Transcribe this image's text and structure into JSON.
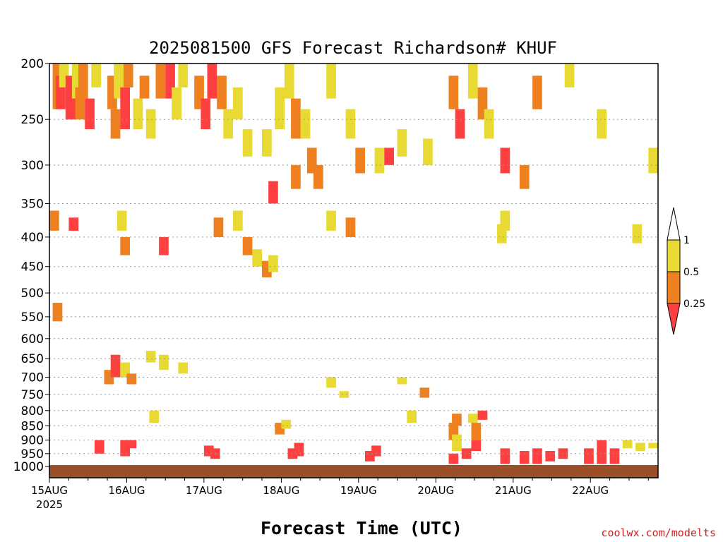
{
  "chart_data": {
    "type": "heatmap",
    "title": "2025081500 GFS Forecast Richardson# KHUF",
    "xlabel": "Forecast Time (UTC)",
    "ylabel": "",
    "credit": "coolwx.com/modelts",
    "x_ticks": [
      "15AUG",
      "16AUG",
      "17AUG",
      "18AUG",
      "19AUG",
      "20AUG",
      "21AUG",
      "22AUG"
    ],
    "x_year_label": "2025",
    "x_range_hours": [
      0,
      189
    ],
    "y_ticks": [
      200,
      250,
      300,
      350,
      400,
      450,
      500,
      550,
      600,
      650,
      700,
      750,
      800,
      850,
      900,
      950,
      1000
    ],
    "y_range_hPa": [
      200,
      1000
    ],
    "y_scale": "log-pressure",
    "grid": "dotted horizontal at y ticks",
    "legend": {
      "placement": "right",
      "labels": [
        "1",
        "0.5",
        "0.25"
      ],
      "colors": {
        "ge1": "#ffffff",
        "c05_1": "#e8da33",
        "c025_05": "#ee8020",
        "lt025": "#ff4040"
      }
    },
    "colors": {
      "ground": "#9b4f28",
      "yellow": "#e8da33",
      "orange": "#ee8020",
      "red": "#ff4040"
    },
    "cells": [
      {
        "h": 1,
        "p": [
          200,
          240
        ],
        "c": "o"
      },
      {
        "h": 2,
        "p": [
          210,
          240
        ],
        "c": "r"
      },
      {
        "h": 3,
        "p": [
          200,
          220
        ],
        "c": "y"
      },
      {
        "h": 5,
        "p": [
          210,
          250
        ],
        "c": "r"
      },
      {
        "h": 7,
        "p": [
          200,
          230
        ],
        "c": "y"
      },
      {
        "h": 8,
        "p": [
          220,
          250
        ],
        "c": "o"
      },
      {
        "h": 9,
        "p": [
          200,
          230
        ],
        "c": "o"
      },
      {
        "h": 11,
        "p": [
          230,
          260
        ],
        "c": "r"
      },
      {
        "h": 13,
        "p": [
          200,
          220
        ],
        "c": "y"
      },
      {
        "h": 18,
        "p": [
          210,
          240
        ],
        "c": "o"
      },
      {
        "h": 19,
        "p": [
          240,
          270
        ],
        "c": "o"
      },
      {
        "h": 20,
        "p": [
          200,
          230
        ],
        "c": "y"
      },
      {
        "h": 22,
        "p": [
          220,
          260
        ],
        "c": "r"
      },
      {
        "h": 23,
        "p": [
          200,
          220
        ],
        "c": "o"
      },
      {
        "h": 26,
        "p": [
          230,
          260
        ],
        "c": "y"
      },
      {
        "h": 28,
        "p": [
          210,
          230
        ],
        "c": "o"
      },
      {
        "h": 30,
        "p": [
          240,
          270
        ],
        "c": "y"
      },
      {
        "h": 33,
        "p": [
          200,
          230
        ],
        "c": "o"
      },
      {
        "h": 36,
        "p": [
          200,
          230
        ],
        "c": "r"
      },
      {
        "h": 38,
        "p": [
          220,
          250
        ],
        "c": "y"
      },
      {
        "h": 40,
        "p": [
          200,
          220
        ],
        "c": "y"
      },
      {
        "h": 45,
        "p": [
          210,
          240
        ],
        "c": "o"
      },
      {
        "h": 47,
        "p": [
          230,
          260
        ],
        "c": "r"
      },
      {
        "h": 49,
        "p": [
          200,
          230
        ],
        "c": "r"
      },
      {
        "h": 52,
        "p": [
          210,
          240
        ],
        "c": "o"
      },
      {
        "h": 54,
        "p": [
          240,
          270
        ],
        "c": "y"
      },
      {
        "h": 57,
        "p": [
          220,
          250
        ],
        "c": "y"
      },
      {
        "h": 60,
        "p": [
          260,
          290
        ],
        "c": "y"
      },
      {
        "h": 66,
        "p": [
          260,
          290
        ],
        "c": "y"
      },
      {
        "h": 70,
        "p": [
          220,
          260
        ],
        "c": "y"
      },
      {
        "h": 73,
        "p": [
          200,
          230
        ],
        "c": "y"
      },
      {
        "h": 75,
        "p": [
          230,
          270
        ],
        "c": "o"
      },
      {
        "h": 78,
        "p": [
          240,
          270
        ],
        "c": "y"
      },
      {
        "h": 80,
        "p": [
          280,
          310
        ],
        "c": "o"
      },
      {
        "h": 82,
        "p": [
          300,
          330
        ],
        "c": "o"
      },
      {
        "h": 86,
        "p": [
          200,
          230
        ],
        "c": "y"
      },
      {
        "h": 92,
        "p": [
          240,
          270
        ],
        "c": "y"
      },
      {
        "h": 95,
        "p": [
          280,
          310
        ],
        "c": "o"
      },
      {
        "h": 101,
        "p": [
          280,
          310
        ],
        "c": "y"
      },
      {
        "h": 104,
        "p": [
          280,
          300
        ],
        "c": "r"
      },
      {
        "h": 108,
        "p": [
          260,
          290
        ],
        "c": "y"
      },
      {
        "h": 116,
        "p": [
          270,
          300
        ],
        "c": "y"
      },
      {
        "h": 124,
        "p": [
          210,
          240
        ],
        "c": "o"
      },
      {
        "h": 126,
        "p": [
          240,
          270
        ],
        "c": "r"
      },
      {
        "h": 130,
        "p": [
          200,
          230
        ],
        "c": "y"
      },
      {
        "h": 133,
        "p": [
          220,
          250
        ],
        "c": "o"
      },
      {
        "h": 135,
        "p": [
          240,
          270
        ],
        "c": "y"
      },
      {
        "h": 140,
        "p": [
          280,
          310
        ],
        "c": "r"
      },
      {
        "h": 146,
        "p": [
          300,
          330
        ],
        "c": "o"
      },
      {
        "h": 150,
        "p": [
          210,
          240
        ],
        "c": "o"
      },
      {
        "h": 160,
        "p": [
          200,
          220
        ],
        "c": "y"
      },
      {
        "h": 170,
        "p": [
          240,
          270
        ],
        "c": "y"
      },
      {
        "h": 186,
        "p": [
          280,
          310
        ],
        "c": "y"
      },
      {
        "h": 0,
        "p": [
          360,
          390
        ],
        "c": "o"
      },
      {
        "h": 6,
        "p": [
          370,
          390
        ],
        "c": "r"
      },
      {
        "h": 21,
        "p": [
          360,
          390
        ],
        "c": "y"
      },
      {
        "h": 22,
        "p": [
          400,
          430
        ],
        "c": "o"
      },
      {
        "h": 34,
        "p": [
          400,
          430
        ],
        "c": "r"
      },
      {
        "h": 51,
        "p": [
          370,
          400
        ],
        "c": "o"
      },
      {
        "h": 57,
        "p": [
          360,
          390
        ],
        "c": "y"
      },
      {
        "h": 60,
        "p": [
          400,
          430
        ],
        "c": "o"
      },
      {
        "h": 63,
        "p": [
          420,
          450
        ],
        "c": "y"
      },
      {
        "h": 66,
        "p": [
          440,
          470
        ],
        "c": "o"
      },
      {
        "h": 68,
        "p": [
          430,
          460
        ],
        "c": "y"
      },
      {
        "h": 68,
        "p": [
          320,
          350
        ],
        "c": "r"
      },
      {
        "h": 75,
        "p": [
          300,
          330
        ],
        "c": "o"
      },
      {
        "h": 86,
        "p": [
          360,
          390
        ],
        "c": "y"
      },
      {
        "h": 92,
        "p": [
          370,
          400
        ],
        "c": "o"
      },
      {
        "h": 139,
        "p": [
          380,
          410
        ],
        "c": "y"
      },
      {
        "h": 140,
        "p": [
          360,
          390
        ],
        "c": "y"
      },
      {
        "h": 181,
        "p": [
          380,
          410
        ],
        "c": "y"
      },
      {
        "h": 1,
        "p": [
          520,
          560
        ],
        "c": "o"
      },
      {
        "h": 17,
        "p": [
          680,
          720
        ],
        "c": "o"
      },
      {
        "h": 19,
        "p": [
          640,
          700
        ],
        "c": "r"
      },
      {
        "h": 22,
        "p": [
          660,
          700
        ],
        "c": "y"
      },
      {
        "h": 24,
        "p": [
          690,
          720
        ],
        "c": "o"
      },
      {
        "h": 30,
        "p": [
          630,
          660
        ],
        "c": "y"
      },
      {
        "h": 34,
        "p": [
          640,
          680
        ],
        "c": "y"
      },
      {
        "h": 40,
        "p": [
          660,
          690
        ],
        "c": "y"
      },
      {
        "h": 31,
        "p": [
          800,
          840
        ],
        "c": "y"
      },
      {
        "h": 86,
        "p": [
          700,
          730
        ],
        "c": "y"
      },
      {
        "h": 90,
        "p": [
          740,
          760
        ],
        "c": "y"
      },
      {
        "h": 108,
        "p": [
          700,
          720
        ],
        "c": "y"
      },
      {
        "h": 115,
        "p": [
          730,
          760
        ],
        "c": "o"
      },
      {
        "h": 111,
        "p": [
          800,
          840
        ],
        "c": "y"
      },
      {
        "h": 125,
        "p": [
          810,
          850
        ],
        "c": "o"
      },
      {
        "h": 130,
        "p": [
          810,
          840
        ],
        "c": "y"
      },
      {
        "h": 133,
        "p": [
          800,
          830
        ],
        "c": "r"
      },
      {
        "h": 124,
        "p": [
          840,
          900
        ],
        "c": "o"
      },
      {
        "h": 125,
        "p": [
          880,
          940
        ],
        "c": "y"
      },
      {
        "h": 70,
        "p": [
          840,
          880
        ],
        "c": "o"
      },
      {
        "h": 72,
        "p": [
          830,
          860
        ],
        "c": "y"
      },
      {
        "h": 22,
        "p": [
          900,
          960
        ],
        "c": "r"
      },
      {
        "h": 24,
        "p": [
          900,
          930
        ],
        "c": "r"
      },
      {
        "h": 14,
        "p": [
          900,
          950
        ],
        "c": "r"
      },
      {
        "h": 50,
        "p": [
          930,
          970
        ],
        "c": "r"
      },
      {
        "h": 48,
        "p": [
          920,
          960
        ],
        "c": "r"
      },
      {
        "h": 74,
        "p": [
          930,
          970
        ],
        "c": "r"
      },
      {
        "h": 76,
        "p": [
          910,
          960
        ],
        "c": "r"
      },
      {
        "h": 98,
        "p": [
          940,
          980
        ],
        "c": "r"
      },
      {
        "h": 100,
        "p": [
          920,
          960
        ],
        "c": "r"
      },
      {
        "h": 124,
        "p": [
          950,
          990
        ],
        "c": "r"
      },
      {
        "h": 128,
        "p": [
          930,
          970
        ],
        "c": "r"
      },
      {
        "h": 131,
        "p": [
          900,
          940
        ],
        "c": "r"
      },
      {
        "h": 131,
        "p": [
          840,
          900
        ],
        "c": "o"
      },
      {
        "h": 140,
        "p": [
          930,
          990
        ],
        "c": "r"
      },
      {
        "h": 146,
        "p": [
          940,
          990
        ],
        "c": "r"
      },
      {
        "h": 150,
        "p": [
          930,
          990
        ],
        "c": "r"
      },
      {
        "h": 154,
        "p": [
          940,
          980
        ],
        "c": "r"
      },
      {
        "h": 158,
        "p": [
          930,
          970
        ],
        "c": "r"
      },
      {
        "h": 166,
        "p": [
          930,
          990
        ],
        "c": "r"
      },
      {
        "h": 170,
        "p": [
          900,
          990
        ],
        "c": "r"
      },
      {
        "h": 174,
        "p": [
          930,
          990
        ],
        "c": "r"
      },
      {
        "h": 178,
        "p": [
          900,
          930
        ],
        "c": "y"
      },
      {
        "h": 182,
        "p": [
          910,
          940
        ],
        "c": "y"
      },
      {
        "h": 186,
        "p": [
          910,
          930
        ],
        "c": "y"
      }
    ]
  }
}
